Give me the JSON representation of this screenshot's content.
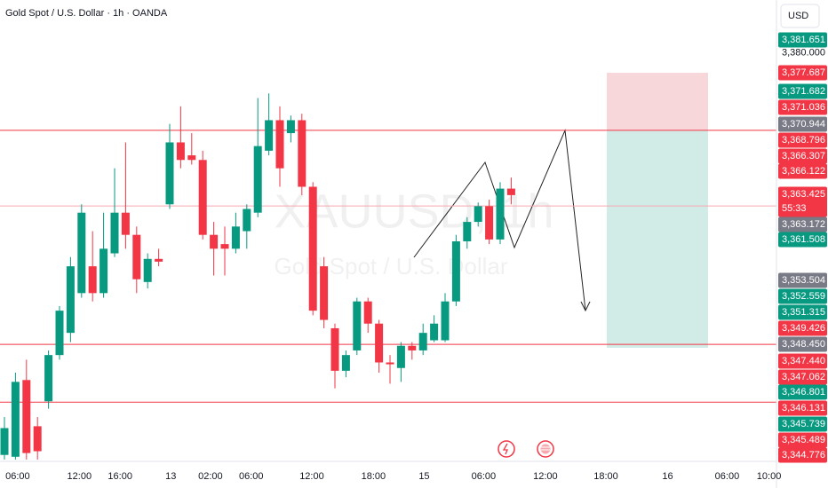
{
  "chart_data": {
    "type": "candlestick",
    "title": "Gold Spot / U.S. Dollar · 1h · OANDA",
    "watermark": "XAUUSD, 1h",
    "watermark_subtitle": "Gold Spot / U.S. Dollar",
    "currency": "USD",
    "up_color": "#089981",
    "down_color": "#f23645",
    "x": [
      0,
      1,
      2,
      3,
      4,
      5,
      6,
      7,
      8,
      9,
      10,
      11,
      12,
      13,
      14,
      15,
      16,
      17,
      18,
      19,
      20,
      21,
      22,
      23,
      24,
      25,
      26,
      27,
      28,
      29,
      30,
      31,
      32,
      33,
      34,
      35,
      36,
      37,
      38,
      39,
      40,
      41,
      42,
      43,
      44,
      45,
      46
    ],
    "open": [
      3336.5,
      3336.3,
      3344.6,
      3339.6,
      3342.3,
      3347.3,
      3349.7,
      3354.0,
      3356.9,
      3354.0,
      3358.3,
      3362.7,
      3360.3,
      3355.2,
      3357.7,
      3363.6,
      3370.3,
      3368.9,
      3368.4,
      3360.3,
      3359.3,
      3358.8,
      3360.7,
      3362.7,
      3369.4,
      3372.7,
      3371.3,
      3372.7,
      3365.5,
      3356.9,
      3350.2,
      3345.6,
      3347.8,
      3353.1,
      3350.7,
      3346.5,
      3345.9,
      3348.3,
      3347.8,
      3348.9,
      3348.9,
      3353.1,
      3359.6,
      3361.7,
      3363.4,
      3359.8,
      3365.3
    ],
    "high": [
      3340.6,
      3345.4,
      3346.8,
      3340.6,
      3347.8,
      3352.6,
      3357.9,
      3363.6,
      3360.7,
      3362.7,
      3367.5,
      3370.3,
      3361.2,
      3358.3,
      3358.8,
      3372.3,
      3374.2,
      3371.3,
      3369.4,
      3361.7,
      3361.2,
      3362.7,
      3363.6,
      3375.1,
      3375.6,
      3374.2,
      3373.2,
      3373.4,
      3366.0,
      3357.9,
      3350.7,
      3347.8,
      3353.5,
      3353.5,
      3351.1,
      3347.3,
      3348.7,
      3348.7,
      3350.7,
      3351.6,
      3354.0,
      3360.3,
      3362.2,
      3363.8,
      3364.1,
      3366.0,
      3366.5
    ],
    "low": [
      3336.0,
      3336.0,
      3336.0,
      3336.0,
      3341.5,
      3346.8,
      3348.7,
      3353.5,
      3353.1,
      3353.5,
      3357.9,
      3358.8,
      3354.0,
      3354.5,
      3356.9,
      3363.1,
      3367.5,
      3367.9,
      3359.8,
      3355.9,
      3355.9,
      3358.3,
      3358.8,
      3362.2,
      3368.9,
      3365.5,
      3370.3,
      3364.6,
      3351.6,
      3350.2,
      3343.7,
      3344.9,
      3347.3,
      3349.7,
      3345.4,
      3344.2,
      3344.4,
      3346.8,
      3347.3,
      3348.7,
      3348.7,
      3352.6,
      3358.8,
      3361.2,
      3359.3,
      3359.3,
      3363.6
    ],
    "close": [
      3339.4,
      3344.4,
      3336.7,
      3336.9,
      3347.3,
      3352.1,
      3356.9,
      3362.7,
      3354.0,
      3358.8,
      3362.7,
      3360.3,
      3355.5,
      3357.7,
      3357.4,
      3370.3,
      3368.4,
      3368.4,
      3360.3,
      3358.8,
      3358.8,
      3361.2,
      3363.1,
      3369.9,
      3372.7,
      3367.5,
      3372.7,
      3365.5,
      3352.1,
      3351.1,
      3345.6,
      3347.3,
      3353.1,
      3350.7,
      3346.5,
      3346.3,
      3348.3,
      3347.8,
      3349.7,
      3350.7,
      3353.1,
      3359.6,
      3361.7,
      3363.4,
      3359.8,
      3365.3,
      3364.6
    ],
    "xlim": [
      -0.403,
      70.08
    ],
    "ylim": [
      3335.8,
      3385.7
    ],
    "xticks": [
      {
        "value": 1.2,
        "label": "06:00"
      },
      {
        "value": 6.8,
        "label": "12:00"
      },
      {
        "value": 10.5,
        "label": "16:00"
      },
      {
        "value": 15.1,
        "label": "13"
      },
      {
        "value": 18.7,
        "label": "02:00"
      },
      {
        "value": 22.4,
        "label": "06:00"
      },
      {
        "value": 27.9,
        "label": "12:00"
      },
      {
        "value": 33.5,
        "label": "18:00"
      },
      {
        "value": 38.1,
        "label": "15"
      },
      {
        "value": 43.5,
        "label": "06:00"
      },
      {
        "value": 49.1,
        "label": "12:00"
      },
      {
        "value": 54.6,
        "label": "18:00"
      },
      {
        "value": 60.2,
        "label": "16"
      },
      {
        "value": 65.6,
        "label": "06:00"
      },
      {
        "value": 69.4,
        "label": "10:00"
      }
    ],
    "yticks": [
      {
        "value": 3380,
        "label": "3,380.000"
      }
    ],
    "hlines": [
      {
        "value": 3371.6,
        "color": "#f23645"
      },
      {
        "value": 3363.425,
        "color": "#f7a9b0"
      },
      {
        "value": 3348.45,
        "color": "#f23645"
      },
      {
        "value": 3342.2,
        "color": "#f23645"
      }
    ],
    "countdown": "55:33",
    "price_labels": [
      {
        "value": 3381.651,
        "label": "3,381.651",
        "color": "#089981"
      },
      {
        "value": 3377.687,
        "label": "3,377.687",
        "color": "#f23645"
      },
      {
        "value": 3371.682,
        "label": "3,371.682",
        "color": "#089981"
      },
      {
        "value": 3371.036,
        "label": "3,371.036",
        "color": "#f23645"
      },
      {
        "value": 3370.944,
        "label": "3,370.944",
        "color": "#787b86"
      },
      {
        "value": 3368.796,
        "label": "3,368.796",
        "color": "#f23645"
      },
      {
        "value": 3366.307,
        "label": "3,366.307",
        "color": "#f23645"
      },
      {
        "value": 3366.122,
        "label": "3,366.122",
        "color": "#f23645"
      },
      {
        "value": 3363.425,
        "label": "3,363.425",
        "color": "#f23645"
      },
      {
        "value": 3363.172,
        "label": "3,363.172",
        "color": "#787b86"
      },
      {
        "value": 3361.508,
        "label": "3,361.508",
        "color": "#089981"
      },
      {
        "value": 3353.504,
        "label": "3,353.504",
        "color": "#787b86"
      },
      {
        "value": 3352.559,
        "label": "3,352.559",
        "color": "#089981"
      },
      {
        "value": 3351.315,
        "label": "3,351.315",
        "color": "#089981"
      },
      {
        "value": 3349.426,
        "label": "3,349.426",
        "color": "#f23645"
      },
      {
        "value": 3348.45,
        "label": "3,348.450",
        "color": "#787b86"
      },
      {
        "value": 3347.44,
        "label": "3,347.440",
        "color": "#f23645"
      },
      {
        "value": 3347.062,
        "label": "3,347.062",
        "color": "#f23645"
      },
      {
        "value": 3346.801,
        "label": "3,346.801",
        "color": "#089981"
      },
      {
        "value": 3346.131,
        "label": "3,346.131",
        "color": "#f23645"
      },
      {
        "value": 3345.739,
        "label": "3,345.739",
        "color": "#089981"
      },
      {
        "value": 3345.489,
        "label": "3,345.489",
        "color": "#f23645"
      },
      {
        "value": 3344.776,
        "label": "3,344.776",
        "color": "#f23645"
      }
    ]
  }
}
